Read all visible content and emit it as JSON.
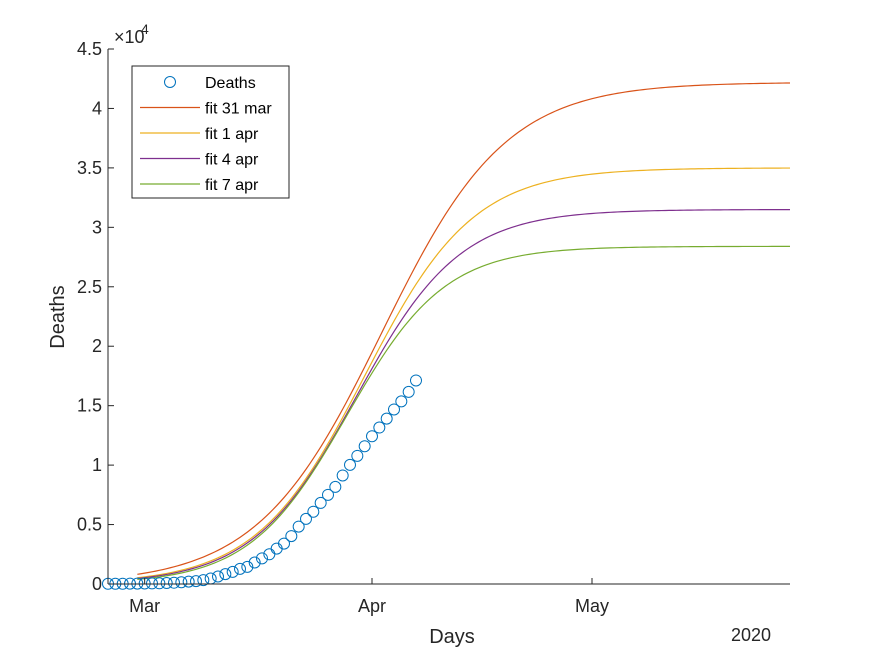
{
  "chart_data": {
    "type": "line",
    "title": "",
    "xlabel": "Days",
    "ylabel": "Deaths",
    "x_units": "day of 2020 (1 = Jan 1)",
    "xlim": [
      56,
      149
    ],
    "ylim": [
      0,
      45000
    ],
    "y_exponent_label": "×10",
    "y_exponent": "4",
    "year_label": "2020",
    "x_ticks": [
      {
        "x": 61,
        "label": "Mar"
      },
      {
        "x": 92,
        "label": "Apr"
      },
      {
        "x": 122,
        "label": "May"
      }
    ],
    "y_ticks": [
      {
        "y": 0,
        "label": "0"
      },
      {
        "y": 5000,
        "label": "0.5"
      },
      {
        "y": 10000,
        "label": "1"
      },
      {
        "y": 15000,
        "label": "1.5"
      },
      {
        "y": 20000,
        "label": "2"
      },
      {
        "y": 25000,
        "label": "2.5"
      },
      {
        "y": 30000,
        "label": "3"
      },
      {
        "y": 35000,
        "label": "3.5"
      },
      {
        "y": 40000,
        "label": "4"
      },
      {
        "y": 45000,
        "label": "4.5"
      }
    ],
    "grid": false,
    "legend": {
      "placement": "top-left"
    },
    "series": [
      {
        "name": "Deaths",
        "kind": "markers",
        "marker": "circle",
        "color": "#0072BD",
        "x": [
          56,
          57,
          58,
          59,
          60,
          61,
          62,
          63,
          64,
          65,
          66,
          67,
          68,
          69,
          70,
          71,
          72,
          73,
          74,
          75,
          76,
          77,
          78,
          79,
          80,
          81,
          82,
          83,
          84,
          85,
          86,
          87,
          88,
          89,
          90,
          91,
          92,
          93,
          94,
          95,
          96,
          97,
          98
        ],
        "y": [
          20,
          20,
          25,
          30,
          35,
          40,
          50,
          60,
          80,
          110,
          150,
          200,
          240,
          330,
          460,
          630,
          830,
          1020,
          1270,
          1440,
          1810,
          2160,
          2500,
          2980,
          3400,
          4030,
          4830,
          5480,
          6080,
          6820,
          7500,
          8170,
          9130,
          10020,
          10780,
          11590,
          12430,
          13160,
          13910,
          14680,
          15360,
          16160,
          17120
        ]
      },
      {
        "name": "fit 31 mar",
        "kind": "line",
        "color": "#D95319",
        "K": 42200,
        "r": 0.118,
        "t0": 93.3,
        "x_end": 149,
        "x_start": 60
      },
      {
        "name": "fit 1 apr",
        "kind": "line",
        "color": "#EDB120",
        "K": 35000,
        "r": 0.135,
        "t0": 91.0,
        "x_end": 149,
        "x_start": 60
      },
      {
        "name": "fit 4 apr",
        "kind": "line",
        "color": "#7E2F8E",
        "K": 31500,
        "r": 0.141,
        "t0": 89.85,
        "x_end": 149,
        "x_start": 60
      },
      {
        "name": "fit 7 apr",
        "kind": "line",
        "color": "#77AC30",
        "K": 28400,
        "r": 0.15,
        "t0": 88.6,
        "x_end": 149,
        "x_start": 60
      }
    ]
  }
}
